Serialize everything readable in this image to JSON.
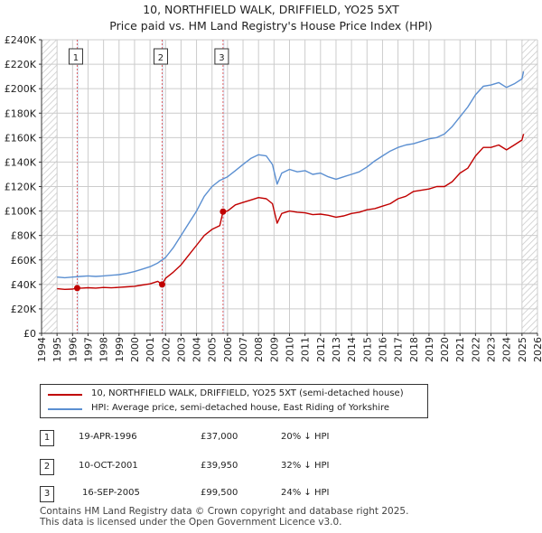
{
  "title_line1": "10, NORTHFIELD WALK, DRIFFIELD, YO25 5XT",
  "title_line2": "Price paid vs. HM Land Registry's House Price Index (HPI)",
  "colors": {
    "property": "#c00000",
    "hpi": "#5b8fd1",
    "shade": "#dce6f4",
    "grid": "#cccccc"
  },
  "chart_data": {
    "type": "line",
    "title": "10, NORTHFIELD WALK, DRIFFIELD, YO25 5XT",
    "subtitle": "Price paid vs. HM Land Registry's House Price Index (HPI)",
    "xlabel": "",
    "ylabel": "",
    "xlim": [
      1994,
      2026
    ],
    "ylim": [
      0,
      240000
    ],
    "x_ticks": [
      "1994",
      "1995",
      "1996",
      "1997",
      "1998",
      "1999",
      "2000",
      "2001",
      "2002",
      "2003",
      "2004",
      "2005",
      "2006",
      "2007",
      "2008",
      "2009",
      "2010",
      "2011",
      "2012",
      "2013",
      "2014",
      "2015",
      "2016",
      "2017",
      "2018",
      "2019",
      "2020",
      "2021",
      "2022",
      "2023",
      "2024",
      "2025",
      "2026"
    ],
    "y_ticks": [
      "£0",
      "£20K",
      "£40K",
      "£60K",
      "£80K",
      "£100K",
      "£120K",
      "£140K",
      "£160K",
      "£180K",
      "£200K",
      "£220K",
      "£240K"
    ],
    "grid": true,
    "hatched_ranges": [
      [
        1994,
        1995
      ],
      [
        2025,
        2026
      ]
    ],
    "series": [
      {
        "name": "10, NORTHFIELD WALK, DRIFFIELD, YO25 5XT (semi-detached house)",
        "x": [
          1995.0,
          1995.5,
          1996.0,
          1996.3,
          1996.6,
          1997.0,
          1997.5,
          1998.0,
          1998.5,
          1999.0,
          1999.5,
          2000.0,
          2000.5,
          2001.0,
          2001.5,
          2001.78,
          2002.0,
          2002.5,
          2003.0,
          2003.5,
          2004.0,
          2004.5,
          2005.0,
          2005.5,
          2005.71,
          2006.0,
          2006.5,
          2007.0,
          2007.5,
          2008.0,
          2008.5,
          2008.9,
          2009.2,
          2009.5,
          2010.0,
          2010.5,
          2011.0,
          2011.5,
          2012.0,
          2012.5,
          2013.0,
          2013.5,
          2014.0,
          2014.5,
          2015.0,
          2015.5,
          2016.0,
          2016.5,
          2017.0,
          2017.5,
          2018.0,
          2018.5,
          2019.0,
          2019.5,
          2020.0,
          2020.5,
          2021.0,
          2021.5,
          2022.0,
          2022.5,
          2023.0,
          2023.5,
          2024.0,
          2024.5,
          2025.0,
          2025.1
        ],
        "values": [
          36500,
          36000,
          36200,
          37000,
          37000,
          37300,
          37000,
          37500,
          37200,
          37600,
          38000,
          38500,
          39500,
          40500,
          42500,
          39950,
          45000,
          50000,
          56000,
          64000,
          72000,
          80000,
          85000,
          88000,
          99500,
          100000,
          105000,
          107000,
          109000,
          111000,
          110000,
          106000,
          90000,
          98000,
          100000,
          99000,
          98500,
          97000,
          97500,
          96500,
          95000,
          96000,
          98000,
          99000,
          101000,
          102000,
          104000,
          106000,
          110000,
          112000,
          116000,
          117000,
          118000,
          120000,
          120000,
          124000,
          131000,
          135000,
          145000,
          152000,
          152000,
          154000,
          150000,
          154000,
          158000,
          163000
        ]
      },
      {
        "name": "HPI: Average price, semi-detached house, East Riding of Yorkshire",
        "x": [
          1995.0,
          1995.5,
          1996.0,
          1996.5,
          1997.0,
          1997.5,
          1998.0,
          1998.5,
          1999.0,
          1999.5,
          2000.0,
          2000.5,
          2001.0,
          2001.5,
          2002.0,
          2002.5,
          2003.0,
          2003.5,
          2004.0,
          2004.5,
          2005.0,
          2005.5,
          2006.0,
          2006.5,
          2007.0,
          2007.5,
          2008.0,
          2008.5,
          2008.9,
          2009.2,
          2009.5,
          2010.0,
          2010.5,
          2011.0,
          2011.5,
          2012.0,
          2012.5,
          2013.0,
          2013.5,
          2014.0,
          2014.5,
          2015.0,
          2015.5,
          2016.0,
          2016.5,
          2017.0,
          2017.5,
          2018.0,
          2018.5,
          2019.0,
          2019.5,
          2020.0,
          2020.5,
          2021.0,
          2021.5,
          2022.0,
          2022.5,
          2023.0,
          2023.5,
          2024.0,
          2024.5,
          2025.0,
          2025.1
        ],
        "values": [
          46000,
          45500,
          46000,
          46500,
          47000,
          46500,
          47000,
          47500,
          48000,
          49000,
          50500,
          52500,
          54500,
          57500,
          62000,
          70000,
          80000,
          90000,
          100000,
          112000,
          120000,
          125000,
          128000,
          133000,
          138000,
          143000,
          146000,
          145000,
          138000,
          122000,
          131000,
          134000,
          132000,
          133000,
          130000,
          131000,
          128000,
          126000,
          128000,
          130000,
          132000,
          136000,
          141000,
          145000,
          149000,
          152000,
          154000,
          155000,
          157000,
          159000,
          160000,
          163000,
          169000,
          177000,
          185000,
          195000,
          202000,
          203000,
          205000,
          201000,
          204000,
          208000,
          214000
        ]
      }
    ],
    "sales": [
      {
        "num": "1",
        "x": 1996.3,
        "price": 37000
      },
      {
        "num": "2",
        "x": 2001.78,
        "price": 39950
      },
      {
        "num": "3",
        "x": 2005.71,
        "price": 99500
      }
    ]
  },
  "legend": {
    "property": "10, NORTHFIELD WALK, DRIFFIELD, YO25 5XT (semi-detached house)",
    "hpi": "HPI: Average price, semi-detached house, East Riding of Yorkshire"
  },
  "sales_table": [
    {
      "num": "1",
      "date": "19-APR-1996",
      "price": "£37,000",
      "hpi": "20% ↓ HPI"
    },
    {
      "num": "2",
      "date": "10-OCT-2001",
      "price": "£39,950",
      "hpi": "32% ↓ HPI"
    },
    {
      "num": "3",
      "date": "16-SEP-2005",
      "price": "£99,500",
      "hpi": "24% ↓ HPI"
    }
  ],
  "footer": {
    "line1": "Contains HM Land Registry data © Crown copyright and database right 2025.",
    "line2": "This data is licensed under the Open Government Licence v3.0."
  }
}
